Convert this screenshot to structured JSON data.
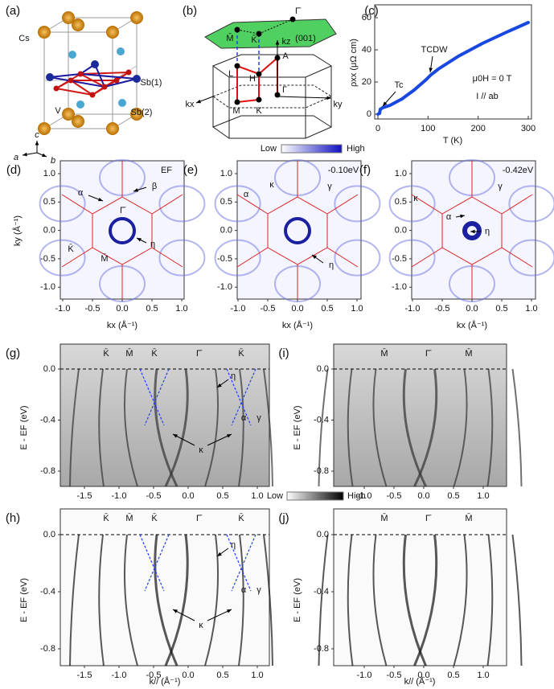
{
  "figure": {
    "a": {
      "label": "(a)",
      "cs": "Cs",
      "v": "V",
      "sb1": "Sb(1)",
      "sb2": "Sb(2)",
      "axis_a": "a",
      "axis_b": "b",
      "axis_c": "c"
    },
    "b": {
      "label": "(b)",
      "gamma_bar": "Γ̄",
      "m_bar": "M̄",
      "k_bar": "K̄",
      "kz": "kz",
      "surface": "(001)",
      "A": "A",
      "L": "L",
      "H": "H",
      "gamma": "Γ",
      "M": "M",
      "K": "K",
      "kx": "kx",
      "ky": "ky"
    },
    "c": {
      "label": "(c)",
      "ylabel": "ρxx (μΩ cm)",
      "xlabel": "T (K)",
      "yticks": [
        "0",
        "20",
        "40",
        "60"
      ],
      "xticks": [
        "0",
        "100",
        "200",
        "300"
      ],
      "tc": "Tc",
      "tcdw": "TCDW",
      "field": "μ0H = 0 T",
      "current": "I // ab"
    },
    "colorbar_blue": {
      "low": "Low",
      "high": "High"
    },
    "d": {
      "label": "(d)",
      "energy": "EF",
      "labels": [
        "α",
        "β",
        "Γ̄",
        "η",
        "K̄",
        "M̄"
      ]
    },
    "e": {
      "label": "(e)",
      "energy": "-0.10eV",
      "labels": [
        "α",
        "κ",
        "γ",
        "η"
      ]
    },
    "f": {
      "label": "(f)",
      "energy": "-0.42eV",
      "labels": [
        "κ",
        "γ",
        "α",
        "η"
      ]
    },
    "kmap_axes": {
      "ylabel": "ky (Å⁻¹)",
      "xlabel": "kx (Å⁻¹)",
      "yticks": [
        "1.0",
        "0.5",
        "0.0",
        "-0.5",
        "-1.0"
      ],
      "xticks": [
        "-1.0",
        "-0.5",
        "0.0",
        "0.5",
        "1.0"
      ]
    },
    "colorbar_gray": {
      "low": "Low",
      "high": "High"
    },
    "g": {
      "label": "(g)",
      "top": [
        "K̄",
        "M̄",
        "K̄",
        "Γ̄",
        "K̄"
      ],
      "labels": [
        "η",
        "α",
        "γ",
        "κ"
      ]
    },
    "h": {
      "label": "(h)",
      "top": [
        "K̄",
        "M̄",
        "K̄",
        "Γ̄",
        "K̄"
      ],
      "labels": [
        "η",
        "α",
        "γ",
        "κ"
      ]
    },
    "i": {
      "label": "(i)",
      "top": [
        "M̄",
        "Γ̄",
        "M̄"
      ]
    },
    "j": {
      "label": "(j)",
      "top": [
        "M̄",
        "Γ̄",
        "M̄"
      ]
    },
    "cut_axes": {
      "ylabel": "E - EF (eV)",
      "xlabel": "k// (Å⁻¹)",
      "yticks": [
        "0.0",
        "-0.4",
        "-0.8"
      ],
      "xticks_wide": [
        "-1.5",
        "-1.0",
        "-0.5",
        "0.0",
        "0.5",
        "1.0"
      ],
      "xticks_narrow": [
        "-1.0",
        "-0.5",
        "0.0",
        "0.5",
        "1.0"
      ]
    }
  }
}
